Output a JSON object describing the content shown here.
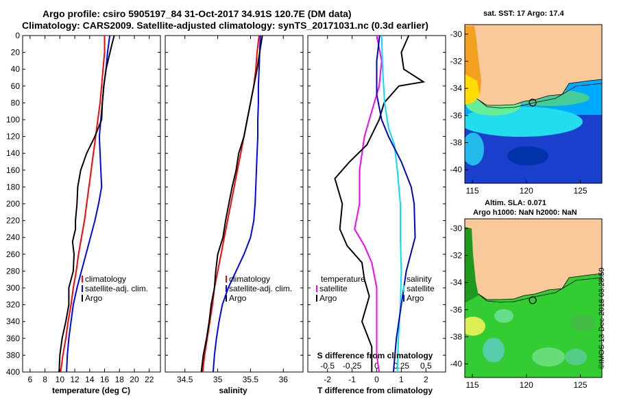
{
  "header": {
    "line1": "Argo profile: csiro 5905197_84 31-Oct-2017 34.91S 120.7E (DM data)",
    "line2": "Climatology: CARS2009. Satellite-adjusted climatology: synTS_20171031.nc (0.3d earlier)"
  },
  "chart_data": [
    {
      "type": "line",
      "id": "temperature",
      "xlabel": "temperature (deg C)",
      "ylabel": "",
      "xlim": [
        5,
        23.5
      ],
      "ylim": [
        400,
        0
      ],
      "xticks": [
        "6",
        "8",
        "10",
        "12",
        "14",
        "16",
        "18",
        "20",
        "22"
      ],
      "xtick_values": [
        6,
        8,
        10,
        12,
        14,
        16,
        18,
        20,
        22
      ],
      "yticks": [
        "0",
        "20",
        "40",
        "60",
        "80",
        "100",
        "120",
        "140",
        "160",
        "180",
        "200",
        "220",
        "240",
        "260",
        "280",
        "300",
        "320",
        "340",
        "360",
        "380",
        "400"
      ],
      "ytick_values": [
        0,
        20,
        40,
        60,
        80,
        100,
        120,
        140,
        160,
        180,
        200,
        220,
        240,
        260,
        280,
        300,
        320,
        340,
        360,
        380,
        400
      ],
      "legend": [
        "climatology",
        "satellite-adj. clim.",
        "Argo"
      ],
      "series": [
        {
          "name": "climatology",
          "color": "#ff0000",
          "points": [
            [
              16,
              0
            ],
            [
              16,
              20
            ],
            [
              15.8,
              40
            ],
            [
              15.6,
              60
            ],
            [
              15.4,
              80
            ],
            [
              15.1,
              100
            ],
            [
              14.8,
              120
            ],
            [
              14.5,
              140
            ],
            [
              14.2,
              160
            ],
            [
              13.9,
              180
            ],
            [
              13.6,
              200
            ],
            [
              13.3,
              220
            ],
            [
              12.9,
              240
            ],
            [
              12.5,
              260
            ],
            [
              12.2,
              280
            ],
            [
              11.8,
              300
            ],
            [
              11.5,
              320
            ],
            [
              11.1,
              340
            ],
            [
              10.8,
              360
            ],
            [
              10.4,
              380
            ],
            [
              10.1,
              400
            ]
          ]
        },
        {
          "name": "satellite-adj. clim.",
          "color": "#0000ff",
          "points": [
            [
              16.7,
              0
            ],
            [
              16.4,
              20
            ],
            [
              16.2,
              40
            ],
            [
              15.9,
              60
            ],
            [
              15.7,
              80
            ],
            [
              15.5,
              100
            ],
            [
              15.3,
              120
            ],
            [
              15.4,
              140
            ],
            [
              15.5,
              160
            ],
            [
              15.6,
              180
            ],
            [
              15.2,
              200
            ],
            [
              14.7,
              220
            ],
            [
              14.1,
              240
            ],
            [
              13.5,
              260
            ],
            [
              12.9,
              280
            ],
            [
              12.3,
              300
            ],
            [
              11.8,
              320
            ],
            [
              11.5,
              340
            ],
            [
              11.2,
              360
            ],
            [
              11.0,
              380
            ],
            [
              10.9,
              400
            ]
          ]
        },
        {
          "name": "Argo",
          "color": "#000000",
          "points": [
            [
              17.3,
              0
            ],
            [
              17,
              10
            ],
            [
              16.6,
              25
            ],
            [
              16.2,
              40
            ],
            [
              15.9,
              60
            ],
            [
              15.7,
              80
            ],
            [
              15.6,
              100
            ],
            [
              14.7,
              120
            ],
            [
              13.6,
              140
            ],
            [
              12.8,
              160
            ],
            [
              12.4,
              180
            ],
            [
              12.3,
              200
            ],
            [
              12.1,
              220
            ],
            [
              12.1,
              230
            ],
            [
              11.7,
              245
            ],
            [
              11.9,
              260
            ],
            [
              11.8,
              280
            ],
            [
              11.2,
              300
            ],
            [
              11.2,
              320
            ],
            [
              10.8,
              340
            ],
            [
              10.3,
              360
            ],
            [
              10.0,
              380
            ],
            [
              9.9,
              400
            ]
          ]
        }
      ]
    },
    {
      "type": "line",
      "id": "salinity",
      "xlabel": "salinity",
      "ylabel": "",
      "xlim": [
        34.2,
        36.3
      ],
      "ylim": [
        400,
        0
      ],
      "xticks": [
        "34.5",
        "35",
        "35.5",
        "36"
      ],
      "xtick_values": [
        34.5,
        35,
        35.5,
        36
      ],
      "legend": [
        "climatology",
        "satellite-adj. clim.",
        "Argo"
      ],
      "series": [
        {
          "name": "climatology",
          "color": "#ff0000",
          "points": [
            [
              35.63,
              0
            ],
            [
              35.6,
              20
            ],
            [
              35.58,
              40
            ],
            [
              35.55,
              60
            ],
            [
              35.5,
              80
            ],
            [
              35.45,
              100
            ],
            [
              35.4,
              120
            ],
            [
              35.35,
              140
            ],
            [
              35.3,
              160
            ],
            [
              35.25,
              180
            ],
            [
              35.2,
              200
            ],
            [
              35.15,
              220
            ],
            [
              35.1,
              240
            ],
            [
              35.05,
              260
            ],
            [
              35.0,
              280
            ],
            [
              34.95,
              300
            ],
            [
              34.92,
              320
            ],
            [
              34.88,
              340
            ],
            [
              34.84,
              360
            ],
            [
              34.8,
              380
            ],
            [
              34.77,
              400
            ]
          ]
        },
        {
          "name": "satellite-adj. clim.",
          "color": "#0000ff",
          "points": [
            [
              35.65,
              0
            ],
            [
              35.64,
              20
            ],
            [
              35.63,
              40
            ],
            [
              35.62,
              60
            ],
            [
              35.62,
              80
            ],
            [
              35.61,
              100
            ],
            [
              35.61,
              120
            ],
            [
              35.6,
              140
            ],
            [
              35.59,
              160
            ],
            [
              35.58,
              180
            ],
            [
              35.57,
              200
            ],
            [
              35.55,
              220
            ],
            [
              35.5,
              240
            ],
            [
              35.4,
              260
            ],
            [
              35.28,
              280
            ],
            [
              35.16,
              300
            ],
            [
              35.07,
              320
            ],
            [
              35.02,
              340
            ],
            [
              34.98,
              360
            ],
            [
              34.95,
              380
            ],
            [
              34.93,
              400
            ]
          ]
        },
        {
          "name": "Argo",
          "color": "#000000",
          "points": [
            [
              35.68,
              0
            ],
            [
              35.64,
              20
            ],
            [
              35.6,
              40
            ],
            [
              35.55,
              60
            ],
            [
              35.5,
              80
            ],
            [
              35.45,
              100
            ],
            [
              35.4,
              120
            ],
            [
              35.32,
              140
            ],
            [
              35.28,
              160
            ],
            [
              35.22,
              180
            ],
            [
              35.17,
              200
            ],
            [
              35.12,
              220
            ],
            [
              35.08,
              240
            ],
            [
              35.0,
              260
            ],
            [
              34.97,
              280
            ],
            [
              34.95,
              300
            ],
            [
              34.9,
              320
            ],
            [
              34.87,
              340
            ],
            [
              34.83,
              360
            ],
            [
              34.78,
              380
            ],
            [
              34.75,
              400
            ]
          ]
        }
      ]
    },
    {
      "type": "line",
      "id": "difference",
      "xlabel": "T difference from climatology",
      "xlabel_top": "S difference from climatology",
      "xlim": [
        -2.8,
        2.8
      ],
      "xlim_s": [
        -0.7,
        0.7
      ],
      "ylim": [
        400,
        0
      ],
      "xticks": [
        "-2",
        "-1",
        "0",
        "1",
        "2"
      ],
      "xtick_values": [
        -2,
        -1,
        0,
        1,
        2
      ],
      "s_ticks": [
        "-0.5",
        "-0.25",
        "0",
        "0.25",
        "0.5"
      ],
      "s_tick_values": [
        -0.5,
        -0.25,
        0,
        0.25,
        0.5
      ],
      "legend": [
        "temperature",
        "satellite",
        "Argo",
        "salinity",
        "satellite",
        "Argo"
      ],
      "series": [
        {
          "name": "T satellite",
          "color": "#ff00ff",
          "points": [
            [
              0,
              0
            ],
            [
              0.2,
              30
            ],
            [
              0.1,
              60
            ],
            [
              -0.1,
              80
            ],
            [
              -0.3,
              100
            ],
            [
              -0.5,
              120
            ],
            [
              -0.6,
              140
            ],
            [
              -0.7,
              160
            ],
            [
              -0.7,
              200
            ],
            [
              -0.9,
              230
            ],
            [
              -0.5,
              250
            ],
            [
              -0.2,
              270
            ],
            [
              0,
              300
            ],
            [
              0,
              340
            ],
            [
              0,
              380
            ],
            [
              0.1,
              400
            ]
          ]
        },
        {
          "name": "T Argo",
          "color": "#000000",
          "points": [
            [
              1.3,
              0
            ],
            [
              1.0,
              20
            ],
            [
              1.1,
              40
            ],
            [
              1.9,
              55
            ],
            [
              0.9,
              60
            ],
            [
              0.3,
              80
            ],
            [
              0.1,
              100
            ],
            [
              -0.4,
              130
            ],
            [
              -1.1,
              150
            ],
            [
              -1.7,
              170
            ],
            [
              -1.4,
              200
            ],
            [
              -1.5,
              230
            ],
            [
              -1.2,
              250
            ],
            [
              -0.6,
              270
            ],
            [
              -0.5,
              290
            ],
            [
              -0.3,
              310
            ],
            [
              -0.6,
              340
            ],
            [
              -0.2,
              370
            ],
            [
              -0.2,
              400
            ]
          ]
        },
        {
          "name": "S satellite",
          "color": "#00ddff",
          "points": [
            [
              0.05,
              0
            ],
            [
              0.06,
              40
            ],
            [
              0.08,
              80
            ],
            [
              0.12,
              110
            ],
            [
              0.18,
              130
            ],
            [
              0.21,
              160
            ],
            [
              0.24,
              200
            ],
            [
              0.24,
              240
            ],
            [
              0.25,
              280
            ],
            [
              0.24,
              320
            ],
            [
              0.22,
              360
            ],
            [
              0.21,
              400
            ]
          ]
        },
        {
          "name": "S Argo",
          "color": "#0000cc",
          "points": [
            [
              0.03,
              0
            ],
            [
              0.0,
              30
            ],
            [
              0.0,
              70
            ],
            [
              0.05,
              100
            ],
            [
              0.12,
              120
            ],
            [
              0.25,
              150
            ],
            [
              0.35,
              180
            ],
            [
              0.38,
              200
            ],
            [
              0.39,
              240
            ],
            [
              0.3,
              280
            ],
            [
              0.25,
              320
            ],
            [
              0.2,
              360
            ],
            [
              0.17,
              400
            ]
          ]
        }
      ]
    }
  ],
  "maps": [
    {
      "id": "sst",
      "title": "sat. SST: 17 Argo: 17.4",
      "xticks": [
        "115",
        "120",
        "125"
      ],
      "yticks": [
        "-30",
        "-32",
        "-34",
        "-36",
        "-38",
        "-40"
      ],
      "lon_range": [
        114.3,
        127
      ],
      "lat_range": [
        -29.3,
        -41
      ],
      "float_lon": 120.7,
      "float_lat": -34.91
    },
    {
      "id": "sla",
      "title_line1": "Altim. SLA: 0.071",
      "title_line2": "Argo h1000: NaN h2000: NaN",
      "xticks": [
        "115",
        "120",
        "125"
      ],
      "yticks": [
        "-30",
        "-32",
        "-34",
        "-36",
        "-38",
        "-40"
      ],
      "lon_range": [
        114.3,
        127
      ],
      "lat_range": [
        -29.3,
        -41
      ],
      "float_lon": 120.7,
      "float_lat": -34.91
    }
  ],
  "stamp": "©IMOS 13-Dec-2018 03:28:59"
}
